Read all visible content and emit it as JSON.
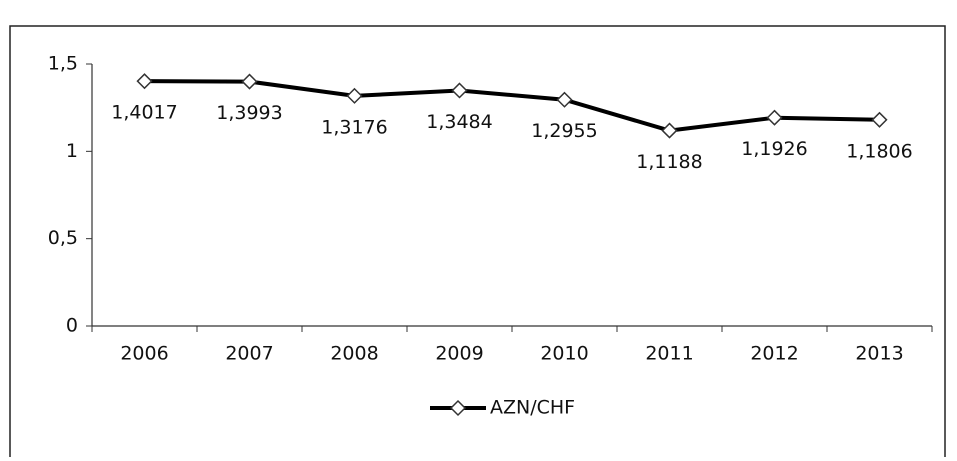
{
  "chart_data": {
    "type": "line",
    "categories": [
      "2006",
      "2007",
      "2008",
      "2009",
      "2010",
      "2011",
      "2012",
      "2013"
    ],
    "series": [
      {
        "name": "AZN/CHF",
        "color": "#000000",
        "values": [
          1.4017,
          1.3993,
          1.3176,
          1.3484,
          1.2955,
          1.1188,
          1.1926,
          1.1806
        ],
        "value_labels": [
          "1,4017",
          "1,3993",
          "1,3176",
          "1,3484",
          "1,2955",
          "1,1188",
          "1,1926",
          "1,1806"
        ]
      }
    ],
    "ylim": [
      0,
      1.5
    ],
    "yticks": [
      0,
      {
        "value": 0.5,
        "label": "0,5"
      },
      1,
      {
        "value": 1.5,
        "label": "1,5"
      }
    ],
    "grid": false,
    "legend": "bottom"
  }
}
